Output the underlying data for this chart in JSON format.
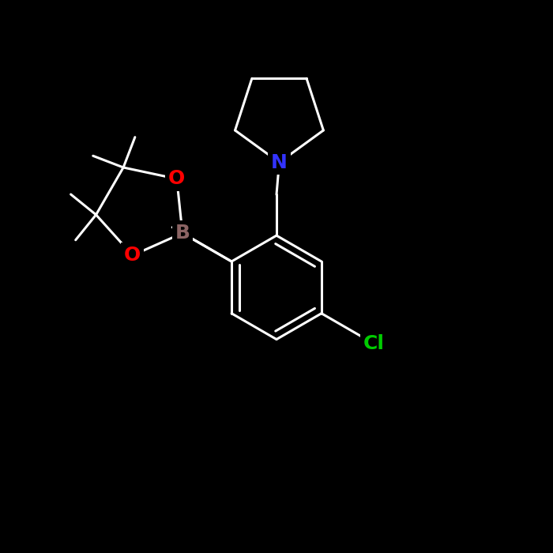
{
  "background_color": "#000000",
  "line_width": 2.2,
  "atom_colors": {
    "N": "#3333ff",
    "O": "#ff0000",
    "B": "#8B6464",
    "Cl": "#00cc00",
    "C": "#ffffff"
  },
  "font_size": 18,
  "fig_width": 7.0,
  "fig_height": 7.0,
  "dpi": 100,
  "xlim": [
    0,
    10
  ],
  "ylim": [
    0,
    10
  ]
}
